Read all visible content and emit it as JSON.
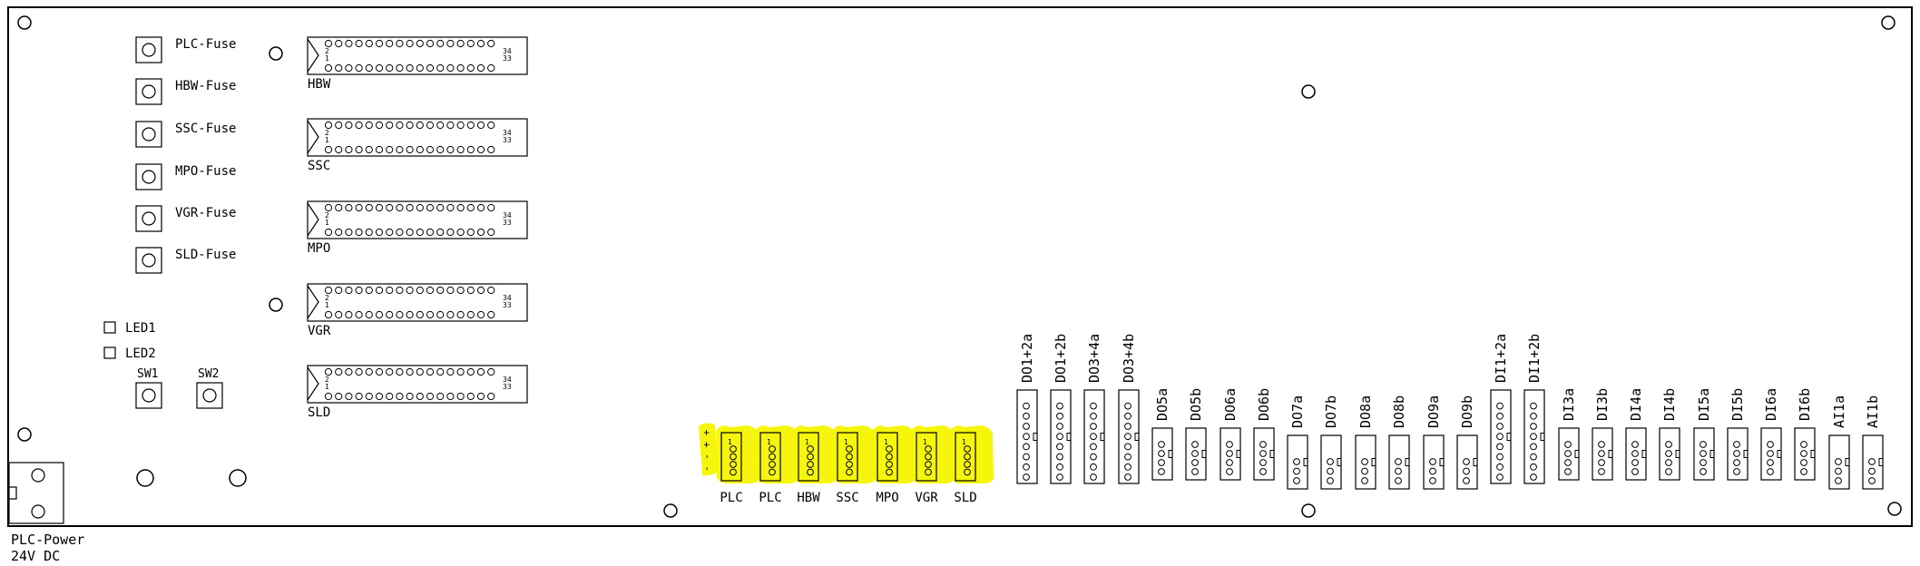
{
  "fuses": [
    {
      "label": "PLC-Fuse"
    },
    {
      "label": "HBW-Fuse"
    },
    {
      "label": "SSC-Fuse"
    },
    {
      "label": "MPO-Fuse"
    },
    {
      "label": "VGR-Fuse"
    },
    {
      "label": "SLD-Fuse"
    }
  ],
  "ribbon_headers": [
    {
      "label": "HBW",
      "pin_top_left": "2",
      "pin_bot_left": "1",
      "pin_top_right": "34",
      "pin_bot_right": "33"
    },
    {
      "label": "SSC",
      "pin_top_left": "2",
      "pin_bot_left": "1",
      "pin_top_right": "34",
      "pin_bot_right": "33"
    },
    {
      "label": "MPO",
      "pin_top_left": "2",
      "pin_bot_left": "1",
      "pin_top_right": "34",
      "pin_bot_right": "33"
    },
    {
      "label": "VGR",
      "pin_top_left": "2",
      "pin_bot_left": "1",
      "pin_top_right": "34",
      "pin_bot_right": "33"
    },
    {
      "label": "SLD",
      "pin_top_left": "2",
      "pin_bot_left": "1",
      "pin_top_right": "34",
      "pin_bot_right": "33"
    }
  ],
  "leds": [
    {
      "label": "LED1"
    },
    {
      "label": "LED2"
    }
  ],
  "switches": [
    {
      "label": "SW1"
    },
    {
      "label": "SW2"
    }
  ],
  "power": {
    "line1": "PLC-Power",
    "line2": "24V DC"
  },
  "power_connectors": [
    {
      "label": "PLC",
      "polarity": "- - + +"
    },
    {
      "label": "PLC"
    },
    {
      "label": "HBW"
    },
    {
      "label": "SSC"
    },
    {
      "label": "MPO"
    },
    {
      "label": "VGR"
    },
    {
      "label": "SLD"
    }
  ],
  "io_connectors": [
    {
      "label": "DO1+2a"
    },
    {
      "label": "DO1+2b"
    },
    {
      "label": "DO3+4a"
    },
    {
      "label": "DO3+4b"
    },
    {
      "label": "DO5a"
    },
    {
      "label": "DO5b"
    },
    {
      "label": "DO6a"
    },
    {
      "label": "DO6b"
    },
    {
      "label": "DO7a"
    },
    {
      "label": "DO7b"
    },
    {
      "label": "DO8a"
    },
    {
      "label": "DO8b"
    },
    {
      "label": "DO9a"
    },
    {
      "label": "DO9b"
    },
    {
      "label": "DI1+2a"
    },
    {
      "label": "DI1+2b"
    },
    {
      "label": "DI3a"
    },
    {
      "label": "DI3b"
    },
    {
      "label": "DI4a"
    },
    {
      "label": "DI4b"
    },
    {
      "label": "DI5a"
    },
    {
      "label": "DI5b"
    },
    {
      "label": "DI6a"
    },
    {
      "label": "DI6b"
    },
    {
      "label": "AI1a"
    },
    {
      "label": "AI1b"
    }
  ],
  "colors": {
    "highlight": "#f5f500",
    "ink": "#000000"
  }
}
